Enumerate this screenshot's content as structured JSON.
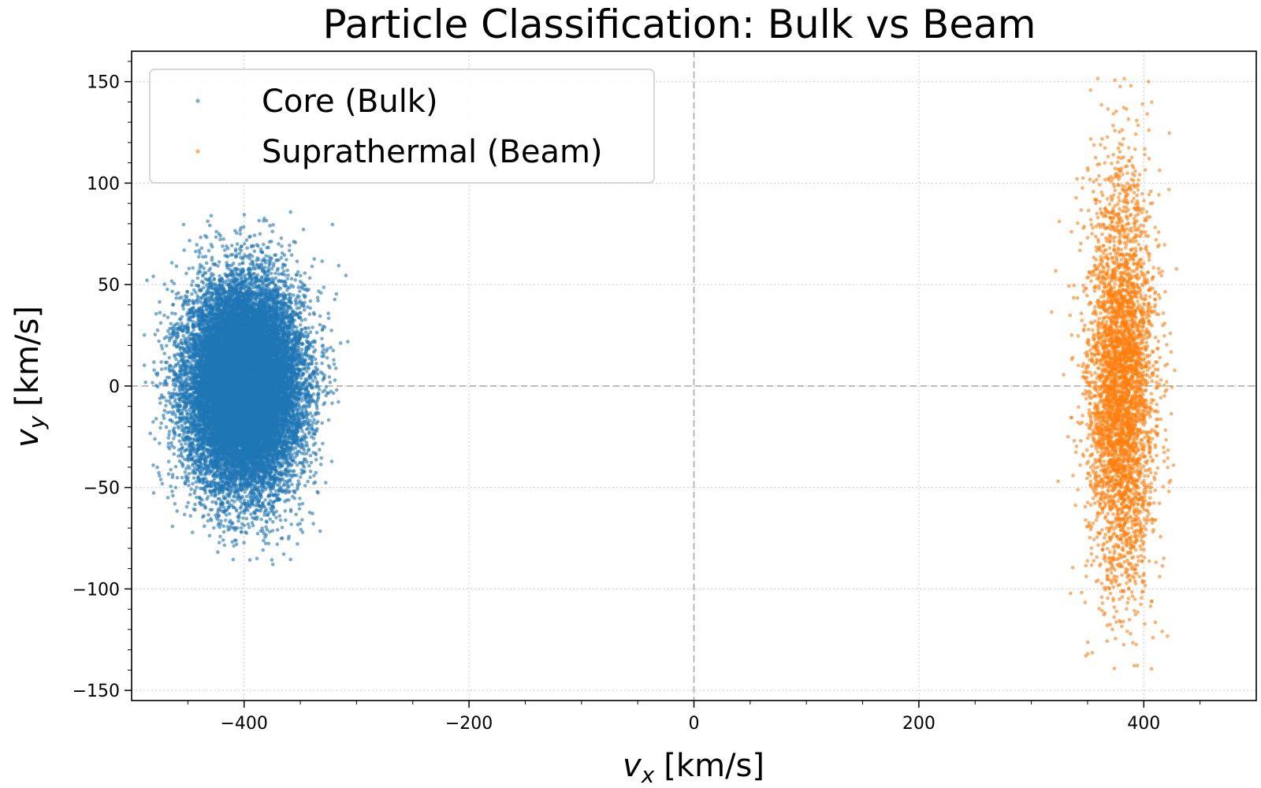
{
  "chart_data": {
    "type": "scatter",
    "title": "Particle Classification: Bulk vs Beam",
    "xlabel": {
      "symbol": "v",
      "subscript": "x",
      "unit": "[km/s]"
    },
    "ylabel": {
      "symbol": "v",
      "subscript": "y",
      "unit": "[km/s]"
    },
    "xlim": [
      -500,
      500
    ],
    "ylim": [
      -155,
      165
    ],
    "xticks": [
      -400,
      -200,
      0,
      200,
      400
    ],
    "xtick_labels": [
      "−400",
      "−200",
      "0",
      "200",
      "400"
    ],
    "yticks": [
      -150,
      -100,
      -50,
      0,
      50,
      100,
      150
    ],
    "ytick_labels": [
      "−150",
      "−100",
      "−50",
      "0",
      "50",
      "100",
      "150"
    ],
    "grid": true,
    "zero_lines": true,
    "legend_position": "upper-left",
    "series": [
      {
        "name": "Core (Bulk)",
        "color": "#1f77b4",
        "center": [
          -400,
          0
        ],
        "std": [
          25,
          25
        ],
        "extent_x": [
          -490,
          -300
        ],
        "extent_y": [
          -88,
          88
        ],
        "approx_count": 20000
      },
      {
        "name": "Suprathermal (Beam)",
        "color": "#ff7f0e",
        "center": [
          380,
          0
        ],
        "std": [
          15,
          50
        ],
        "extent_x": [
          315,
          450
        ],
        "extent_y": [
          -140,
          152
        ],
        "approx_count": 4000
      }
    ]
  }
}
